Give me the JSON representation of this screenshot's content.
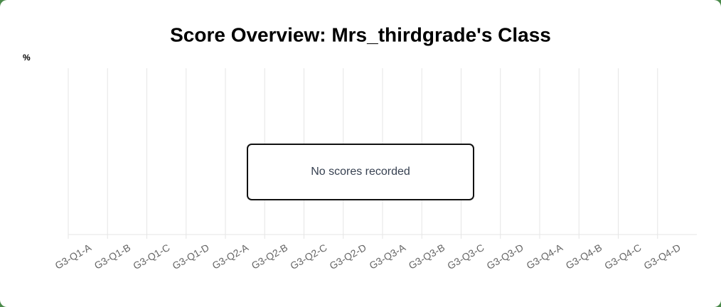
{
  "chart_data": {
    "type": "bar",
    "title": "Score Overview: Mrs_thirdgrade's Class",
    "y_label": "%",
    "categories": [
      "G3-Q1-A",
      "G3-Q1-B",
      "G3-Q1-C",
      "G3-Q1-D",
      "G3-Q2-A",
      "G3-Q2-B",
      "G3-Q2-C",
      "G3-Q2-D",
      "G3-Q3-A",
      "G3-Q3-B",
      "G3-Q3-C",
      "G3-Q3-D",
      "G3-Q4-A",
      "G3-Q4-B",
      "G3-Q4-C",
      "G3-Q4-D"
    ],
    "annotation": "No scores recorded",
    "grid": true
  }
}
